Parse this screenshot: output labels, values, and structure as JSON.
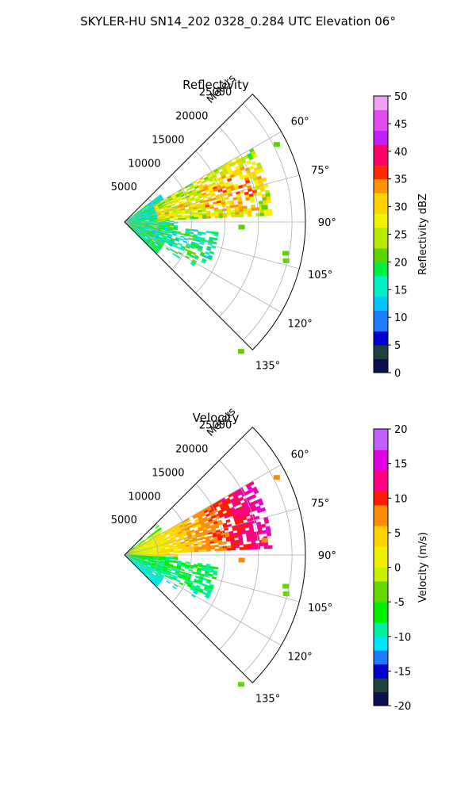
{
  "figure_title": "SKYLER-HU  SN14_202  0328_0.284 UTC Elevation 06°",
  "chart_data": [
    {
      "type": "heatmap",
      "subtype": "polar-sector (PPI radar scan)",
      "title": "Reflectivity",
      "radial_label": "Meters",
      "radial_ticks": [
        "5000",
        "10000",
        "15000",
        "20000",
        "25000"
      ],
      "radial_values": [
        5000,
        10000,
        15000,
        20000,
        25000
      ],
      "r_max": 27000,
      "angle_ticks": [
        "60°",
        "75°",
        "90°",
        "105°",
        "120°",
        "135°"
      ],
      "angle_values": [
        60,
        75,
        90,
        105,
        120,
        135
      ],
      "angle_range": [
        45,
        135
      ],
      "grid": true,
      "colorbar": {
        "label": "Reflectivity dBZ",
        "range": [
          0,
          50
        ],
        "ticks": [
          "0",
          "5",
          "10",
          "15",
          "20",
          "25",
          "30",
          "35",
          "40",
          "45",
          "50"
        ],
        "tick_values": [
          0,
          5,
          10,
          15,
          20,
          25,
          30,
          35,
          40,
          45,
          50
        ],
        "stops": [
          {
            "v": 0,
            "c": "#0a0f50"
          },
          {
            "v": 3,
            "c": "#1f3f3f"
          },
          {
            "v": 5,
            "c": "#0000cc"
          },
          {
            "v": 8,
            "c": "#1e7bff"
          },
          {
            "v": 11,
            "c": "#00c8ff"
          },
          {
            "v": 14,
            "c": "#00f0c8"
          },
          {
            "v": 17,
            "c": "#00ee44"
          },
          {
            "v": 20,
            "c": "#5cd400"
          },
          {
            "v": 23,
            "c": "#b8ea00"
          },
          {
            "v": 26,
            "c": "#f4f400"
          },
          {
            "v": 29,
            "c": "#ffd200"
          },
          {
            "v": 32,
            "c": "#ff9200"
          },
          {
            "v": 35,
            "c": "#ff2a00"
          },
          {
            "v": 38,
            "c": "#ff0066"
          },
          {
            "v": 41,
            "c": "#c020ff"
          },
          {
            "v": 44,
            "c": "#e04cf0"
          },
          {
            "v": 47,
            "c": "#f0a0f0"
          },
          {
            "v": 50,
            "c": "#fde4fd"
          }
        ]
      }
    },
    {
      "type": "heatmap",
      "subtype": "polar-sector (PPI radar scan)",
      "title": "Velocity",
      "radial_label": "Meters",
      "radial_ticks": [
        "5000",
        "10000",
        "15000",
        "20000",
        "25000"
      ],
      "radial_values": [
        5000,
        10000,
        15000,
        20000,
        25000
      ],
      "r_max": 27000,
      "angle_ticks": [
        "60°",
        "75°",
        "90°",
        "105°",
        "120°",
        "135°"
      ],
      "angle_values": [
        60,
        75,
        90,
        105,
        120,
        135
      ],
      "angle_range": [
        45,
        135
      ],
      "grid": true,
      "colorbar": {
        "label": "Velocity (m/s)",
        "range": [
          -20,
          20
        ],
        "ticks": [
          "-20",
          "-15",
          "-10",
          "-5",
          "0",
          "5",
          "10",
          "15",
          "20"
        ],
        "tick_values": [
          -20,
          -15,
          -10,
          -5,
          0,
          5,
          10,
          15,
          20
        ],
        "stops": [
          {
            "v": -20,
            "c": "#0a0f50"
          },
          {
            "v": -18,
            "c": "#1f3f3f"
          },
          {
            "v": -16,
            "c": "#0000cc"
          },
          {
            "v": -14,
            "c": "#1e7bff"
          },
          {
            "v": -12,
            "c": "#00e6ff"
          },
          {
            "v": -10,
            "c": "#00f0a0"
          },
          {
            "v": -8,
            "c": "#00f000"
          },
          {
            "v": -5,
            "c": "#64d800"
          },
          {
            "v": -2,
            "c": "#c8f000"
          },
          {
            "v": 0,
            "c": "#f0f000"
          },
          {
            "v": 3,
            "c": "#ffd200"
          },
          {
            "v": 6,
            "c": "#ff8c00"
          },
          {
            "v": 9,
            "c": "#ff1a00"
          },
          {
            "v": 11,
            "c": "#ff0080"
          },
          {
            "v": 14,
            "c": "#e000e0"
          },
          {
            "v": 17,
            "c": "#c060ff"
          },
          {
            "v": 20,
            "c": "#fde4fd"
          }
        ]
      }
    }
  ]
}
